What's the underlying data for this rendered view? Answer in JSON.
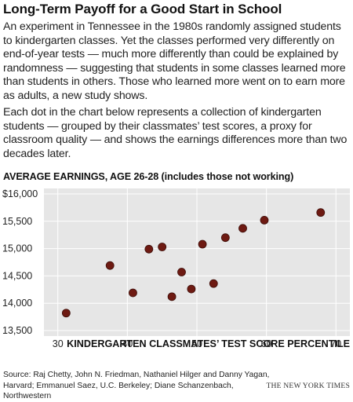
{
  "headline": "Long-Term Payoff for a Good Start in School",
  "intro": "An experiment in Tennessee in the 1980s randomly assigned students to kindergarten classes. Yet the classes performed very differently on end-of-year tests — much more differently than could be explained by randomness — suggesting that students in some classes learned more than students in others. Those who learned more went on to earn more as adults, a new study shows.",
  "explainer": "Each dot in the chart below represents a collection of kindergarten students — grouped by their classmates’ test scores, a proxy for classroom quality — and shows the earnings differences more than two decades later.",
  "source": "Source: Raj Chetty, John N. Friedman, Nathaniel Hilger and Danny Yagan, Harvard; Emmanuel Saez, U.C. Berkeley; Diane Schanzenbach, Northwestern",
  "credit": "THE NEW YORK TIMES",
  "colors": {
    "dot": "#6e1a12",
    "dot_stroke": "#3d0d08",
    "plot_bg": "#e6e6e6",
    "grid": "#ffffff"
  },
  "chart_data": {
    "type": "scatter",
    "title": "AVERAGE EARNINGS, AGE 26-28 (includes those not working)",
    "xlabel": "KINDERGARTEN CLASSMATES’ TEST SCORE PERCENTILE",
    "ylabel": "",
    "xlim": [
      28,
      72
    ],
    "ylim": [
      13400,
      16100
    ],
    "x_ticks": [
      30,
      40,
      50,
      60,
      70
    ],
    "x_tick_labels": [
      "30",
      "40",
      "50",
      "60",
      "70"
    ],
    "y_ticks": [
      13500,
      14000,
      14500,
      15000,
      15500,
      16000
    ],
    "y_tick_labels": [
      "13,500",
      "14,000",
      "14,500",
      "15,000",
      "15,500",
      "$16,000"
    ],
    "grid": true,
    "points": [
      {
        "x": 31.2,
        "y": 13820
      },
      {
        "x": 37.5,
        "y": 14690
      },
      {
        "x": 40.8,
        "y": 14190
      },
      {
        "x": 43.1,
        "y": 14990
      },
      {
        "x": 45.0,
        "y": 15030
      },
      {
        "x": 46.4,
        "y": 14120
      },
      {
        "x": 47.8,
        "y": 14570
      },
      {
        "x": 49.2,
        "y": 14260
      },
      {
        "x": 50.8,
        "y": 15080
      },
      {
        "x": 52.4,
        "y": 14360
      },
      {
        "x": 54.1,
        "y": 15200
      },
      {
        "x": 56.6,
        "y": 15370
      },
      {
        "x": 59.7,
        "y": 15520
      },
      {
        "x": 67.8,
        "y": 15660
      }
    ]
  }
}
